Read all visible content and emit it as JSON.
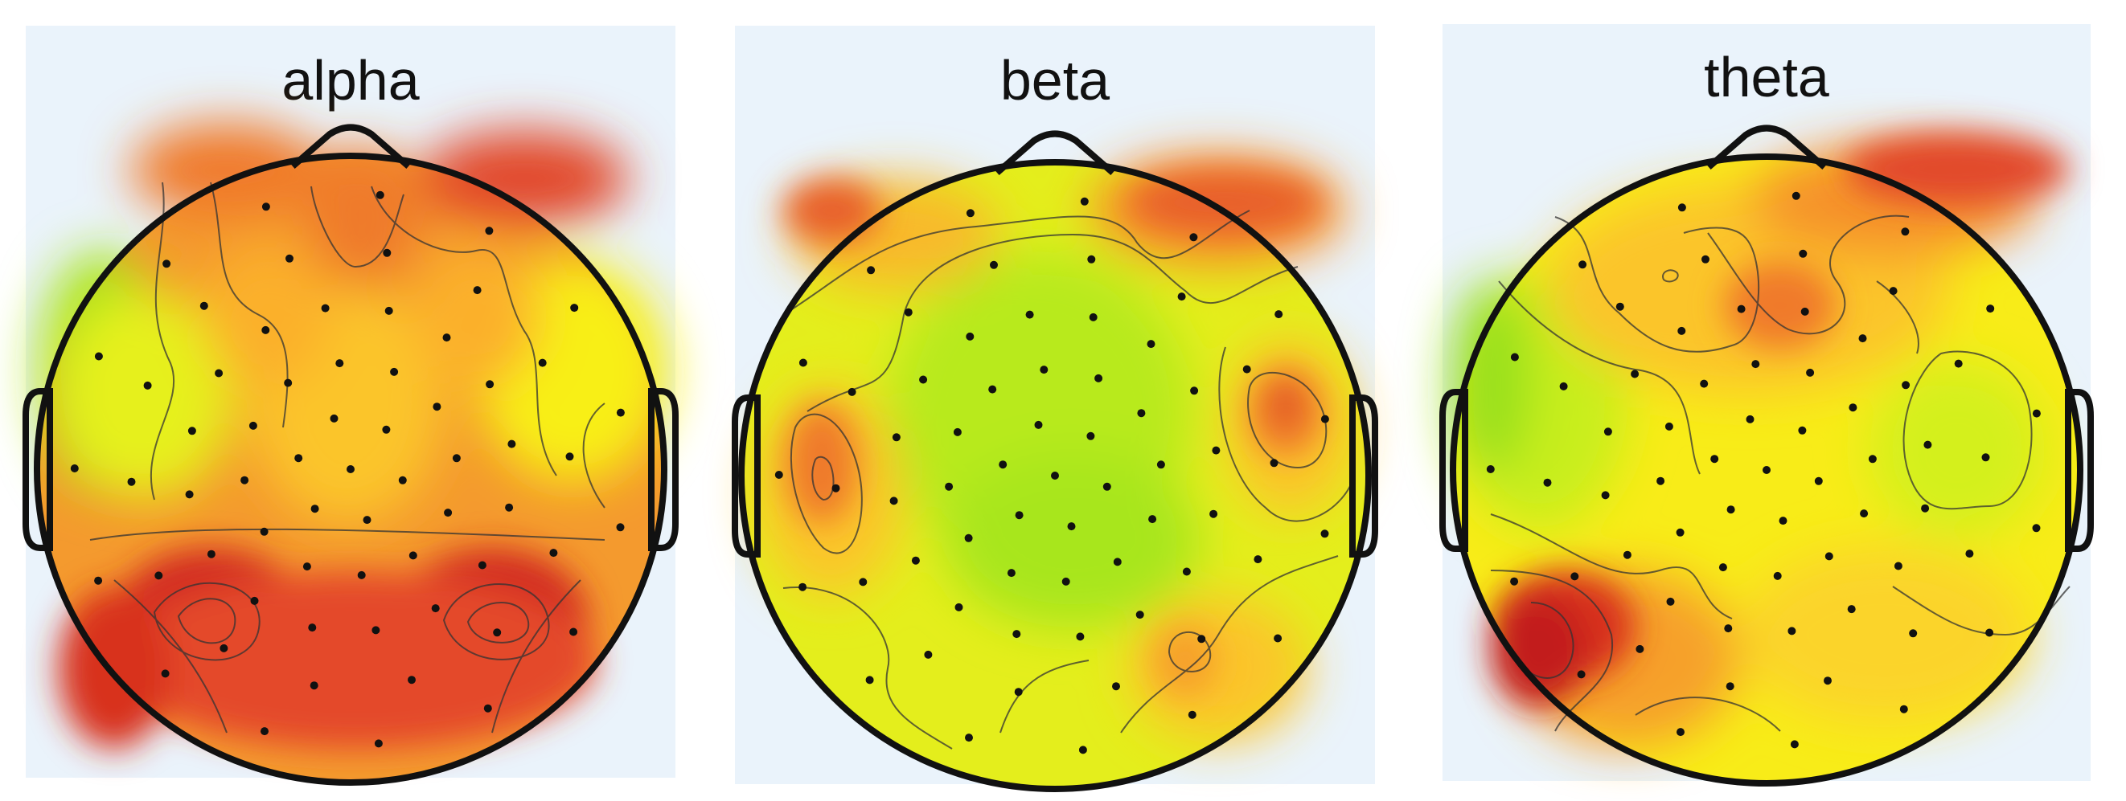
{
  "figure": {
    "panels": [
      {
        "id": "alpha",
        "title": "alpha"
      },
      {
        "id": "beta",
        "title": "beta"
      },
      {
        "id": "theta",
        "title": "theta"
      }
    ]
  },
  "colors": {
    "panel_background": "#eaf3fb",
    "scale": [
      "#8ce01c",
      "#c9ee1a",
      "#f8ef16",
      "#fbc52a",
      "#f6932c",
      "#ec5a2a",
      "#d42a22"
    ],
    "outline": "#111111",
    "electrode": "#111111"
  },
  "electrode_count_per_map": 64
}
